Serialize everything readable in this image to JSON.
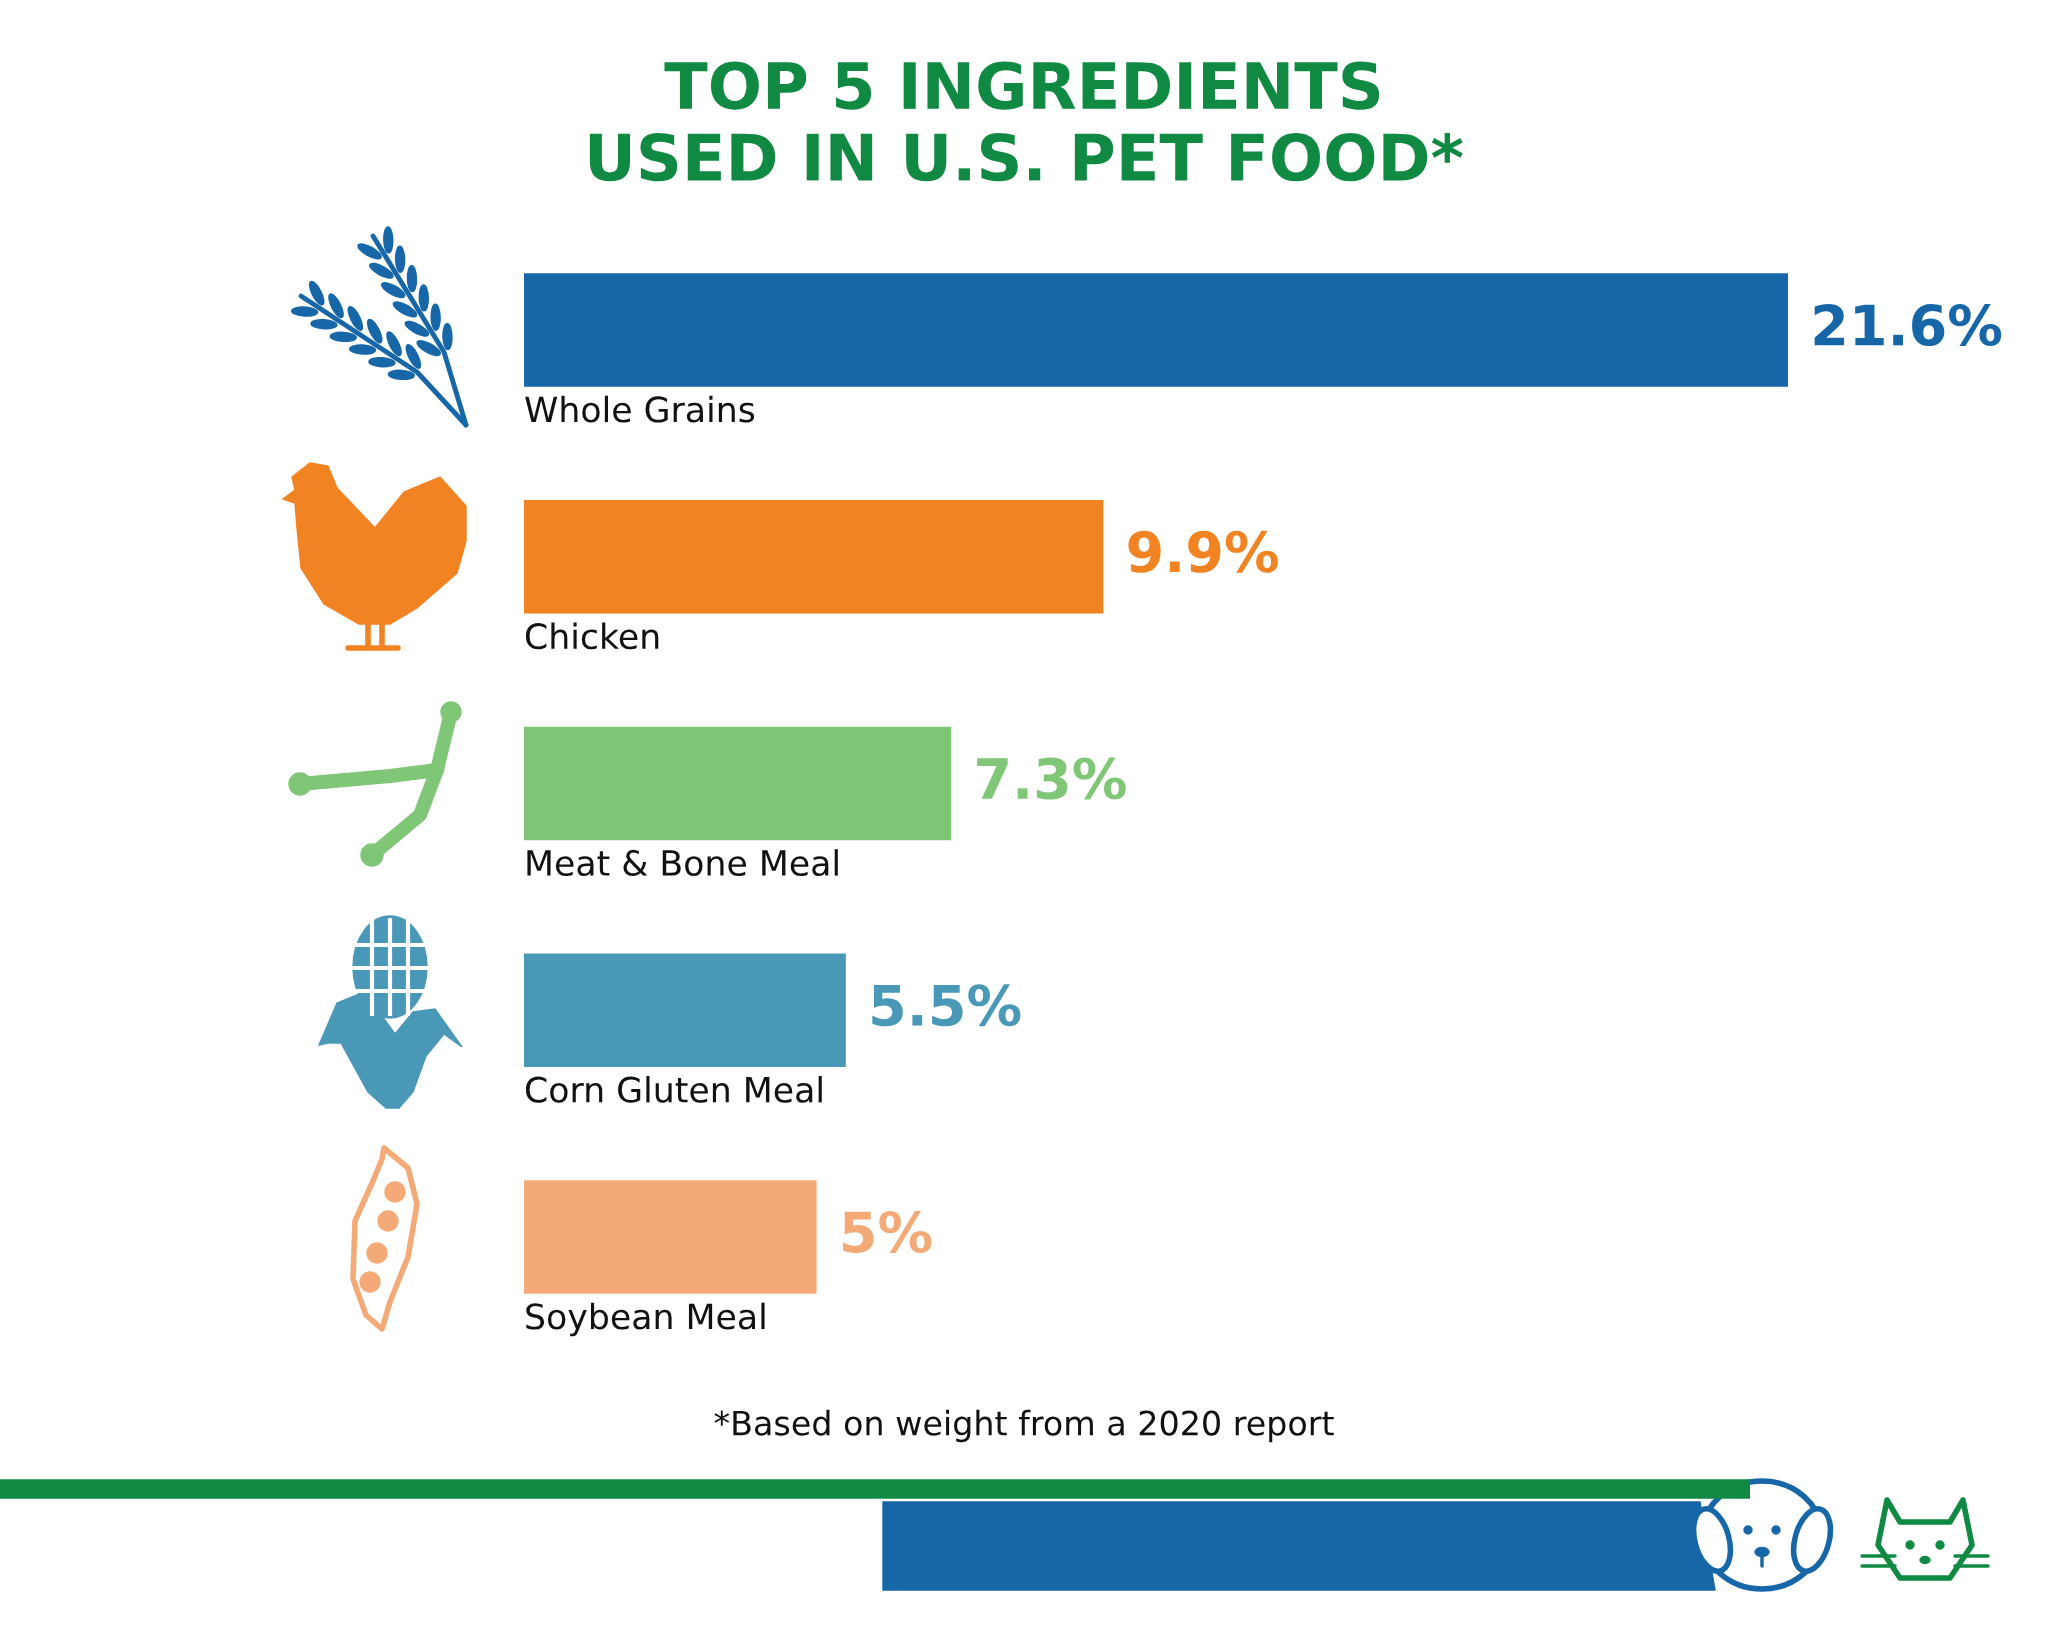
{
  "chart_data": {
    "type": "bar",
    "orientation": "horizontal",
    "title": "TOP 5 INGREDIENTS\nUSED IN U.S. PET FOOD*",
    "categories": [
      "Whole Grains",
      "Chicken",
      "Meat & Bone Meal",
      "Corn Gluten Meal",
      "Soybean Meal"
    ],
    "values": [
      21.6,
      9.9,
      7.3,
      5.5,
      5
    ],
    "colors": [
      "#1767a8",
      "#f28322",
      "#7fc677",
      "#4a98b8",
      "#f4aa76"
    ],
    "value_labels": [
      "21.6%",
      "9.9%",
      "7.3%",
      "5.5%",
      "5%"
    ],
    "tick_labels": "y",
    "annotations": [
      "*Based on weight from a 2020 report"
    ]
  }
}
